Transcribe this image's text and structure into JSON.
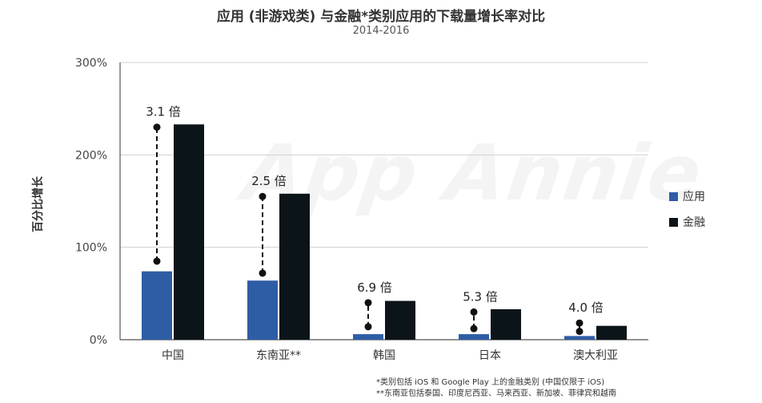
{
  "chart_data": {
    "type": "bar",
    "title": "应用 (非游戏类) 与金融*类别应用的下载量增长率对比",
    "subtitle": "2014-2016",
    "ylabel": "百分比增长",
    "xlabel": "",
    "ylim": [
      0,
      300
    ],
    "yticks": [
      0,
      100,
      200,
      300
    ],
    "ytick_labels": [
      "0%",
      "100%",
      "200%",
      "300%"
    ],
    "categories": [
      "中国",
      "东南亚**",
      "韩国",
      "日本",
      "澳大利亚"
    ],
    "series": [
      {
        "name": "应用",
        "color": "#2E5DA5",
        "values": [
          74,
          64,
          6,
          6,
          4
        ]
      },
      {
        "name": "金融",
        "color": "#0B1419",
        "values": [
          233,
          158,
          42,
          33,
          15
        ]
      }
    ],
    "annotations": [
      "3.1 倍",
      "2.5 倍",
      "6.9 倍",
      "5.3 倍",
      "4.0 倍"
    ],
    "connector_ranges": [
      [
        85,
        230
      ],
      [
        72,
        155
      ],
      [
        14,
        40
      ],
      [
        12,
        30
      ],
      [
        9,
        18
      ]
    ],
    "grid": true,
    "legend": "right"
  },
  "watermark": "App Annie",
  "footnotes": [
    "*类别包括 iOS 和 Google Play 上的金融类别 (中国仅限于 iOS)",
    "**东南亚包括泰国、印度尼西亚、马来西亚、新加坡、菲律宾和越南"
  ]
}
